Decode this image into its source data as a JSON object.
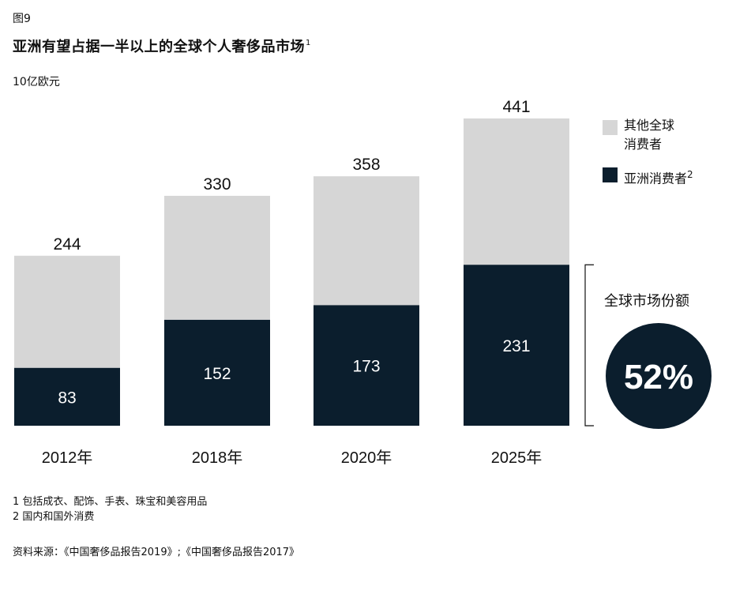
{
  "figure_label": "图9",
  "title": "亚洲有望占据一半以上的全球个人奢侈品市场",
  "title_sup": "1",
  "unit": "10亿欧元",
  "legend": [
    {
      "label_line1": "其他全球",
      "label_line2": "消费者",
      "color": "#d6d6d6"
    },
    {
      "label_line1": "亚洲消费者",
      "label_sup": "2",
      "color": "#0b1e2d"
    }
  ],
  "share": {
    "label": "全球市场份额",
    "value": "52%"
  },
  "footnotes": [
    "1 包括成衣、配饰、手表、珠宝和美容用品",
    "2 国内和国外消费"
  ],
  "source": "资料来源：《中国奢侈品报告2019》;《中国奢侈品报告2017》",
  "chart_data": {
    "type": "bar",
    "stacked": true,
    "categories": [
      "2012年",
      "2018年",
      "2020年",
      "2025年"
    ],
    "totals": [
      244,
      330,
      358,
      441
    ],
    "series": [
      {
        "name": "亚洲消费者",
        "values": [
          83,
          152,
          173,
          231
        ],
        "color": "#0b1e2d"
      },
      {
        "name": "其他全球消费者",
        "values": [
          161,
          178,
          185,
          210
        ],
        "color": "#d6d6d6"
      }
    ],
    "ylim": [
      0,
      441
    ]
  }
}
